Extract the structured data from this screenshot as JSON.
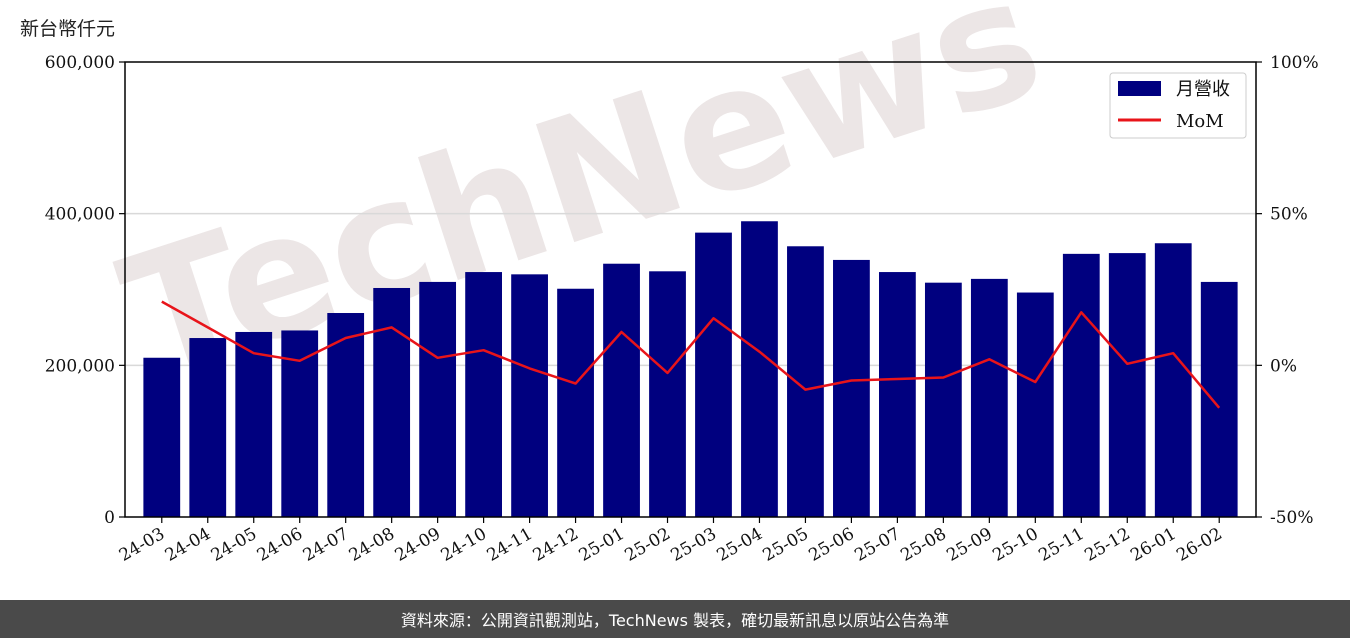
{
  "unit_label": "新台幣仟元",
  "footer": "資料來源：公開資訊觀測站，TechNews 製表，確切最新訊息以原站公告為準",
  "watermark": "TechNews",
  "colors": {
    "bar": "#00007f",
    "line": "#e8141a",
    "grid": "#d9d9d9",
    "footer_bg": "#4a4a4a"
  },
  "chart_data": {
    "type": "bar",
    "categories": [
      "24-03",
      "24-04",
      "24-05",
      "24-06",
      "24-07",
      "24-08",
      "24-09",
      "24-10",
      "24-11",
      "24-12",
      "25-01",
      "25-02",
      "25-03",
      "25-04",
      "25-05",
      "25-06",
      "25-07",
      "25-08",
      "25-09",
      "25-10",
      "25-11",
      "25-12",
      "26-01",
      "26-02"
    ],
    "series": [
      {
        "name": "月營收",
        "type": "bar",
        "axis": "left",
        "values": [
          210000,
          236000,
          244000,
          246000,
          269000,
          302000,
          310000,
          323000,
          320000,
          301000,
          334000,
          324000,
          375000,
          390000,
          357000,
          339000,
          323000,
          309000,
          314000,
          296000,
          347000,
          348000,
          361000,
          310000
        ]
      },
      {
        "name": "MoM",
        "type": "line",
        "axis": "right",
        "values": [
          21.0,
          12.5,
          4.0,
          1.5,
          9.0,
          12.5,
          2.5,
          5.0,
          -1.0,
          -6.0,
          11.0,
          -2.5,
          15.5,
          4.5,
          -8.0,
          -5.0,
          -4.5,
          -4.0,
          2.0,
          -5.5,
          17.5,
          0.5,
          4.0,
          -14.0
        ]
      }
    ],
    "y_left": {
      "min": 0,
      "max": 600000,
      "ticks": [
        0,
        200000,
        400000,
        600000
      ],
      "tick_labels": [
        "0",
        "200,000",
        "400,000",
        "600,000"
      ]
    },
    "y_right": {
      "min": -50,
      "max": 100,
      "ticks": [
        -50,
        0,
        50,
        100
      ],
      "tick_labels": [
        "-50%",
        "0%",
        "50%",
        "100%"
      ]
    },
    "grid": "horizontal",
    "legend": "top-right"
  }
}
